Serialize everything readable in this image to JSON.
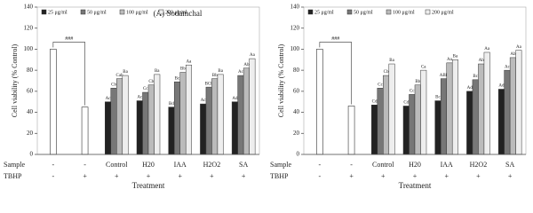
{
  "chart_data": [
    {
      "type": "bar",
      "title": "(A) Sodamchal",
      "ylabel": "Cell viability (% Control)",
      "xlabel": "Treatment",
      "row_names": [
        "Sample",
        "TBHP"
      ],
      "categories": [
        "-",
        "-",
        "Control",
        "H20",
        "IAA",
        "H2O2",
        "SA"
      ],
      "tbhp": [
        "-",
        "+",
        "+",
        "+",
        "+",
        "+",
        "+"
      ],
      "ylim": [
        0,
        140
      ],
      "yticks": [
        0,
        20,
        40,
        60,
        80,
        100,
        120,
        140
      ],
      "significance": "###",
      "controls": {
        "color": "#ffffff",
        "values": [
          100,
          45,
          null,
          null,
          null,
          null,
          null
        ]
      },
      "series": [
        {
          "name": "25 μg/ml",
          "color": "#222222",
          "values": [
            null,
            null,
            50,
            51,
            45,
            48,
            50
          ],
          "letters": [
            null,
            null,
            "Ac",
            "Ac",
            "Bd",
            "Ac",
            "Ad"
          ]
        },
        {
          "name": "50 μg/ml",
          "color": "#777777",
          "values": [
            null,
            null,
            63,
            59,
            69,
            64,
            75
          ],
          "letters": [
            null,
            null,
            "Cb",
            "Cc",
            "Bc",
            "BCb",
            "Ac"
          ]
        },
        {
          "name": "100 μg/ml",
          "color": "#bbbbbb",
          "values": [
            null,
            null,
            72,
            66,
            78,
            72,
            82
          ],
          "letters": [
            null,
            null,
            "Cab",
            "Cb",
            "Bb",
            "Bb",
            "Ab"
          ]
        },
        {
          "name": "200 μg/ml",
          "color": "#eeeeee",
          "values": [
            null,
            null,
            75,
            76,
            85,
            76,
            91
          ],
          "letters": [
            null,
            null,
            "Ba",
            "Ba",
            "Aa",
            "Ba",
            "Aa"
          ]
        }
      ]
    },
    {
      "type": "bar",
      "ylabel": "Cell viability (% Control)",
      "xlabel": "Treatment",
      "row_names": [
        "Sample",
        "TBHP"
      ],
      "categories": [
        "-",
        "-",
        "Control",
        "H20",
        "IAA",
        "H2O2",
        "SA"
      ],
      "tbhp": [
        "-",
        "+",
        "+",
        "+",
        "+",
        "+",
        "+"
      ],
      "ylim": [
        0,
        140
      ],
      "yticks": [
        0,
        20,
        40,
        60,
        80,
        100,
        120,
        140
      ],
      "significance": "###",
      "controls": {
        "color": "#ffffff",
        "values": [
          100,
          46,
          null,
          null,
          null,
          null,
          null
        ]
      },
      "series": [
        {
          "name": "25 μg/ml",
          "color": "#222222",
          "values": [
            null,
            null,
            47,
            46,
            51,
            60,
            62
          ],
          "letters": [
            null,
            null,
            "Cd",
            "Cd",
            "Bc",
            "Ad",
            "Ad"
          ]
        },
        {
          "name": "50 μg/ml",
          "color": "#777777",
          "values": [
            null,
            null,
            63,
            57,
            72,
            71,
            80
          ],
          "letters": [
            null,
            null,
            "Cc",
            "Cc",
            "ABb",
            "Bc",
            "Ac"
          ]
        },
        {
          "name": "100 μg/ml",
          "color": "#bbbbbb",
          "values": [
            null,
            null,
            75,
            66,
            87,
            86,
            92
          ],
          "letters": [
            null,
            null,
            "Cb",
            "Bb",
            "Aa",
            "Ab",
            "Ab"
          ]
        },
        {
          "name": "200 μg/ml",
          "color": "#eeeeee",
          "values": [
            null,
            null,
            86,
            80,
            90,
            97,
            99
          ],
          "letters": [
            null,
            null,
            "Ba",
            "Ca",
            "Ba",
            "Aa",
            "Aa"
          ]
        }
      ]
    }
  ]
}
